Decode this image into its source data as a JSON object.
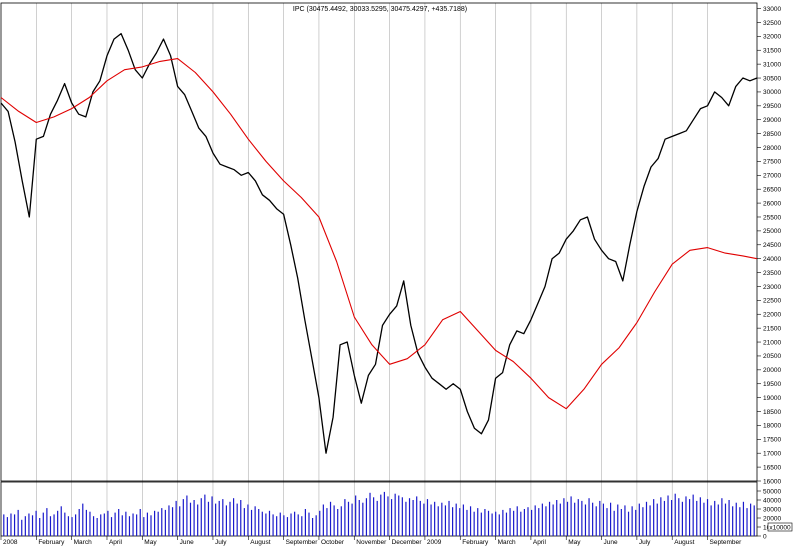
{
  "chart_data": {
    "type": "line",
    "title": "IPC (30475.4492, 30033.5295, 30475.4297, +435.7188)",
    "xlabel": "",
    "ylabel": "",
    "ylim": [
      16500,
      33000
    ],
    "y_ticks": [
      16000,
      16500,
      17000,
      17500,
      18000,
      18500,
      19000,
      19500,
      20000,
      20500,
      21000,
      21500,
      22000,
      22500,
      23000,
      23500,
      24000,
      24500,
      25000,
      25500,
      26000,
      26500,
      27000,
      27500,
      28000,
      28500,
      29000,
      29500,
      30000,
      30500,
      31000,
      31500,
      32000,
      32500,
      33000
    ],
    "volume_ticks": [
      {
        "label": "50000",
        "value": 50000
      },
      {
        "label": "40000",
        "value": 40000
      },
      {
        "label": "30000",
        "value": 30000
      },
      {
        "label": "20000",
        "value": 20000
      },
      {
        "label": "10000",
        "value": 10000
      },
      {
        "label": "0",
        "value": 0
      }
    ],
    "volume_max": 60000,
    "volume_legend": "x10000",
    "months": [
      {
        "label": "2008",
        "start": 0
      },
      {
        "label": "February",
        "start": 1
      },
      {
        "label": "March",
        "start": 2
      },
      {
        "label": "April",
        "start": 3
      },
      {
        "label": "May",
        "start": 4
      },
      {
        "label": "June",
        "start": 5
      },
      {
        "label": "July",
        "start": 6
      },
      {
        "label": "August",
        "start": 7
      },
      {
        "label": "September",
        "start": 8
      },
      {
        "label": "October",
        "start": 9
      },
      {
        "label": "November",
        "start": 10
      },
      {
        "label": "December",
        "start": 11
      },
      {
        "label": "2009",
        "start": 12
      },
      {
        "label": "February",
        "start": 13
      },
      {
        "label": "March",
        "start": 14
      },
      {
        "label": "April",
        "start": 15
      },
      {
        "label": "May",
        "start": 16
      },
      {
        "label": "June",
        "start": 17
      },
      {
        "label": "July",
        "start": 18
      },
      {
        "label": "August",
        "start": 19
      },
      {
        "label": "September",
        "start": 20
      }
    ],
    "x_range": [
      0,
      21.4
    ],
    "series": [
      {
        "name": "",
        "color": "#000000",
        "x": [
          0,
          0.2,
          0.4,
          0.6,
          0.8,
          1.0,
          1.2,
          1.4,
          1.6,
          1.8,
          2.0,
          2.2,
          2.4,
          2.6,
          2.8,
          3.0,
          3.2,
          3.4,
          3.6,
          3.8,
          4.0,
          4.2,
          4.4,
          4.6,
          4.8,
          5.0,
          5.2,
          5.4,
          5.6,
          5.8,
          6.0,
          6.2,
          6.4,
          6.6,
          6.8,
          7.0,
          7.2,
          7.4,
          7.6,
          7.8,
          8.0,
          8.2,
          8.4,
          8.6,
          8.8,
          9.0,
          9.2,
          9.4,
          9.6,
          9.8,
          10.0,
          10.2,
          10.4,
          10.6,
          10.8,
          11.0,
          11.2,
          11.4,
          11.6,
          11.8,
          12.0,
          12.2,
          12.4,
          12.6,
          12.8,
          13.0,
          13.2,
          13.4,
          13.6,
          13.8,
          14.0,
          14.2,
          14.4,
          14.6,
          14.8,
          15.0,
          15.2,
          15.4,
          15.6,
          15.8,
          16.0,
          16.2,
          16.4,
          16.6,
          16.8,
          17.0,
          17.2,
          17.4,
          17.6,
          17.8,
          18.0,
          18.2,
          18.4,
          18.6,
          18.8,
          19.0,
          19.2,
          19.4,
          19.6,
          19.8,
          20.0,
          20.2,
          20.4,
          20.6,
          20.8,
          21.0,
          21.2,
          21.4
        ],
        "y": [
          29600,
          29300,
          28200,
          26800,
          25500,
          28300,
          28400,
          29200,
          29700,
          30300,
          29600,
          29200,
          29100,
          30000,
          30400,
          31300,
          31900,
          32100,
          31500,
          30800,
          30500,
          31000,
          31400,
          31900,
          31300,
          30200,
          29900,
          29300,
          28700,
          28400,
          27800,
          27400,
          27300,
          27200,
          27000,
          27100,
          26800,
          26300,
          26100,
          25800,
          25600,
          24500,
          23300,
          21800,
          20400,
          19000,
          17000,
          18300,
          20900,
          21000,
          19800,
          18800,
          19800,
          20200,
          21600,
          22000,
          22300,
          23200,
          21600,
          20600,
          20100,
          19700,
          19500,
          19300,
          19500,
          19300,
          18500,
          17900,
          17700,
          18200,
          19700,
          19900,
          20900,
          21400,
          21300,
          21800,
          22400,
          23000,
          24000,
          24200,
          24700,
          25000,
          25400,
          25500,
          24700,
          24300,
          24000,
          23900,
          23200,
          24500,
          25700,
          26600,
          27300,
          27600,
          28300,
          28400,
          28500,
          28600,
          29000,
          29400,
          29500,
          30000,
          29800,
          29500,
          30200,
          30500,
          30400,
          30500
        ]
      },
      {
        "name": "",
        "color": "#e00000",
        "x": [
          0,
          0.5,
          1.0,
          1.5,
          2.0,
          2.5,
          3.0,
          3.5,
          4.0,
          4.5,
          5.0,
          5.5,
          6.0,
          6.5,
          7.0,
          7.5,
          8.0,
          8.5,
          9.0,
          9.5,
          10.0,
          10.5,
          11.0,
          11.5,
          12.0,
          12.5,
          13.0,
          13.5,
          14.0,
          14.5,
          15.0,
          15.5,
          16.0,
          16.5,
          17.0,
          17.5,
          18.0,
          18.5,
          19.0,
          19.5,
          20.0,
          20.5,
          21.0,
          21.4
        ],
        "y": [
          29800,
          29300,
          28900,
          29100,
          29400,
          29800,
          30400,
          30800,
          30900,
          31100,
          31200,
          30700,
          30000,
          29200,
          28300,
          27500,
          26800,
          26200,
          25500,
          23900,
          21900,
          20900,
          20200,
          20400,
          20900,
          21800,
          22100,
          21400,
          20700,
          20300,
          19700,
          19000,
          18600,
          19300,
          20200,
          20800,
          21700,
          22800,
          23800,
          24300,
          24400,
          24200,
          24100,
          24000
        ]
      }
    ],
    "volume": [
      24,
      21,
      25,
      24,
      29,
      18,
      22,
      25,
      23,
      28,
      20,
      26,
      31,
      22,
      24,
      28,
      33,
      26,
      22,
      21,
      24,
      30,
      36,
      29,
      27,
      22,
      20,
      24,
      25,
      28,
      21,
      26,
      30,
      23,
      27,
      22,
      25,
      24,
      30,
      21,
      26,
      23,
      28,
      27,
      31,
      29,
      34,
      32,
      39,
      33,
      41,
      45,
      37,
      40,
      35,
      42,
      46,
      38,
      44,
      36,
      39,
      41,
      34,
      38,
      42,
      36,
      40,
      31,
      35,
      29,
      33,
      30,
      27,
      25,
      28,
      24,
      22,
      26,
      23,
      21,
      25,
      27,
      24,
      22,
      30,
      26,
      20,
      23,
      28,
      35,
      31,
      38,
      34,
      30,
      33,
      41,
      38,
      36,
      45,
      40,
      37,
      42,
      48,
      43,
      39,
      46,
      49,
      44,
      41,
      47,
      45,
      43,
      38,
      42,
      40,
      44,
      39,
      36,
      41,
      35,
      38,
      33,
      37,
      34,
      39,
      32,
      36,
      31,
      35,
      29,
      33,
      27,
      31,
      26,
      30,
      28,
      25,
      27,
      24,
      29,
      26,
      31,
      28,
      33,
      27,
      30,
      32,
      29,
      34,
      31,
      36,
      33,
      38,
      35,
      40,
      36,
      42,
      38,
      44,
      37,
      41,
      39,
      35,
      42,
      37,
      33,
      39,
      36,
      31,
      37,
      28,
      35,
      30,
      34,
      27,
      33,
      29,
      36,
      32,
      38,
      34,
      41,
      36,
      43,
      39,
      45,
      40,
      47,
      42,
      38,
      44,
      41,
      46,
      39,
      43,
      37,
      41,
      34,
      39,
      35,
      42,
      36,
      40,
      33,
      37,
      32,
      38,
      31,
      36,
      34
    ]
  }
}
